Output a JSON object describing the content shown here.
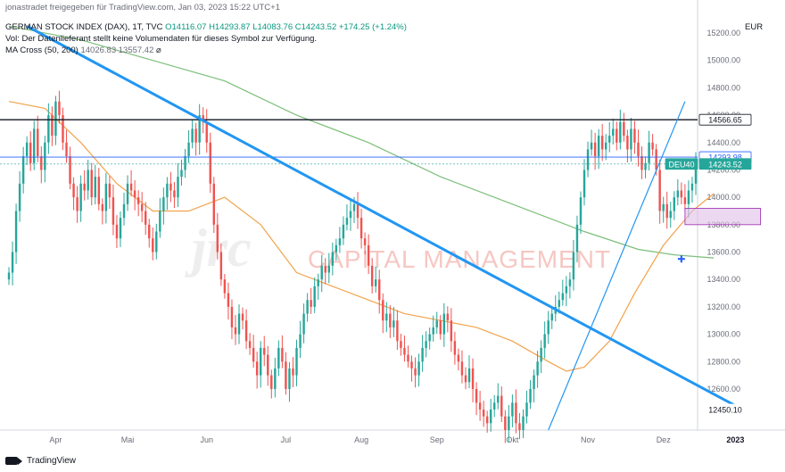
{
  "header": {
    "attribution": "jonastradet freigegeben für TradingView.com, Jan 03, 2023 15:22 UTC+1",
    "symbol_line": "GERMAN STOCK INDEX (DAX), 1T, TVC",
    "ohlc": "O14116.07 H14293.87 L14083.76 C14243.52 +174.25 (+1.24%)",
    "vol_note": "Vol: Der Datenlieferant stellt keine Volumendaten für dieses Symbol zur Verfügung.",
    "ma_label": "MA Cross (50, 200)",
    "ma_values": "14026.83  13557.42",
    "ma_tail": "⌀"
  },
  "currency": "EUR",
  "watermark": "CAPITAL MANAGEMENT",
  "watermark_logo": "jrc",
  "footer": {
    "brand": "TradingView"
  },
  "colors": {
    "up": "#26a69a",
    "down": "#ef5350",
    "ma_fast": "#f2a34b",
    "ma_slow": "#7cbf7a",
    "trendline": "#2196f3",
    "resistance": "#131722",
    "price_line": "#2962ff",
    "zone_fill": "#e1bee7",
    "zone_border": "#9c27b0"
  },
  "chart_data": {
    "type": "candlestick",
    "title": "GERMAN STOCK INDEX (DAX), 1T, TVC",
    "ylabel": "EUR",
    "ylim": [
      12300,
      15350
    ],
    "y_ticks": [
      12450.1,
      12600,
      12800,
      13000,
      13200,
      13400,
      13600,
      13800,
      14000,
      14200,
      14400,
      14600,
      14800,
      15000,
      15200
    ],
    "x_labels": [
      "Apr",
      "Mai",
      "Jun",
      "Jul",
      "Aug",
      "Sep",
      "Okt",
      "Nov",
      "Dez",
      "2023"
    ],
    "x_label_index": [
      13,
      33,
      55,
      77,
      98,
      119,
      140,
      161,
      182,
      202
    ],
    "price_labels": [
      {
        "text": "14566.65",
        "value": 14566.65,
        "style": "resistance"
      },
      {
        "text": "14293.98",
        "value": 14293.98,
        "style": "price"
      },
      {
        "text": "DEU40",
        "value": 14243.52,
        "style": "symbol"
      },
      {
        "text": "14243.52",
        "value": 14243.52,
        "style": "last"
      },
      {
        "text": "12450.10",
        "value": 12450.1,
        "style": "plain"
      }
    ],
    "series": [
      {
        "name": "DAX",
        "kind": "close",
        "closes": [
          13450,
          13600,
          13900,
          14100,
          14300,
          14400,
          14250,
          14500,
          14300,
          14200,
          14400,
          14600,
          14450,
          14700,
          14600,
          14400,
          14300,
          14100,
          14000,
          13900,
          14100,
          14050,
          14200,
          14000,
          14150,
          13950,
          13900,
          14100,
          14000,
          13800,
          13700,
          13850,
          13950,
          14100,
          14050,
          14000,
          13950,
          13900,
          13800,
          13700,
          13600,
          13750,
          13900,
          14000,
          14100,
          14050,
          14000,
          14150,
          14200,
          14300,
          14400,
          14500,
          14400,
          14600,
          14550,
          14400,
          14100,
          13800,
          13600,
          13400,
          13300,
          13200,
          13050,
          13000,
          13150,
          13100,
          12950,
          12900,
          12800,
          12700,
          12900,
          12850,
          12700,
          12600,
          12750,
          12900,
          12800,
          12600,
          12750,
          12700,
          12900,
          13000,
          13150,
          13250,
          13200,
          13350,
          13400,
          13500,
          13450,
          13500,
          13600,
          13650,
          13700,
          13800,
          13850,
          13900,
          13950,
          13850,
          13700,
          13650,
          13500,
          13350,
          13400,
          13250,
          13100,
          13150,
          13050,
          13100,
          12950,
          12900,
          12850,
          12800,
          12750,
          12700,
          12800,
          12900,
          12950,
          13000,
          13050,
          13100,
          13000,
          13150,
          13100,
          12950,
          12850,
          12800,
          12700,
          12650,
          12750,
          12600,
          12500,
          12450,
          12400,
          12350,
          12450,
          12500,
          12550,
          12400,
          12300,
          12400,
          12500,
          12350,
          12300,
          12400,
          12500,
          12600,
          12700,
          12800,
          12900,
          13000,
          13100,
          13150,
          13200,
          13250,
          13300,
          13350,
          13400,
          13600,
          13800,
          14000,
          14200,
          14350,
          14400,
          14300,
          14450,
          14350,
          14400,
          14450,
          14500,
          14400,
          14550,
          14450,
          14350,
          14500,
          14400,
          14300,
          14200,
          14250,
          14400,
          14350,
          14200,
          13900,
          13950,
          13850,
          13900,
          14000,
          14050,
          14000,
          13950,
          14050,
          14100,
          14243.52
        ]
      },
      {
        "name": "MA 50",
        "kind": "line",
        "values_at": [
          [
            0,
            14700
          ],
          [
            10,
            14650
          ],
          [
            20,
            14400
          ],
          [
            30,
            14100
          ],
          [
            40,
            13900
          ],
          [
            50,
            13900
          ],
          [
            60,
            14000
          ],
          [
            70,
            13800
          ],
          [
            80,
            13450
          ],
          [
            90,
            13350
          ],
          [
            100,
            13250
          ],
          [
            110,
            13150
          ],
          [
            120,
            13100
          ],
          [
            130,
            13050
          ],
          [
            140,
            12950
          ],
          [
            150,
            12800
          ],
          [
            155,
            12730
          ],
          [
            160,
            12760
          ],
          [
            167,
            12950
          ],
          [
            174,
            13300
          ],
          [
            182,
            13650
          ],
          [
            190,
            13900
          ],
          [
            196,
            14026.83
          ]
        ]
      },
      {
        "name": "MA 200",
        "kind": "line",
        "values_at": [
          [
            0,
            15250
          ],
          [
            20,
            15150
          ],
          [
            40,
            15000
          ],
          [
            60,
            14850
          ],
          [
            80,
            14600
          ],
          [
            100,
            14400
          ],
          [
            120,
            14150
          ],
          [
            140,
            13950
          ],
          [
            160,
            13750
          ],
          [
            175,
            13620
          ],
          [
            185,
            13580
          ],
          [
            196,
            13557.42
          ]
        ]
      }
    ],
    "drawings": {
      "downtrend": [
        [
          5,
          15250
        ],
        [
          204,
          12450
        ]
      ],
      "uptrend": [
        [
          150,
          12300
        ],
        [
          188,
          14700
        ]
      ],
      "resistance": 14566.65,
      "price_line": 14293.98,
      "zone": {
        "i0": 188,
        "i1": 209,
        "y0": 13800,
        "y1": 13920
      },
      "cross_marker": [
        187,
        13550
      ]
    }
  }
}
